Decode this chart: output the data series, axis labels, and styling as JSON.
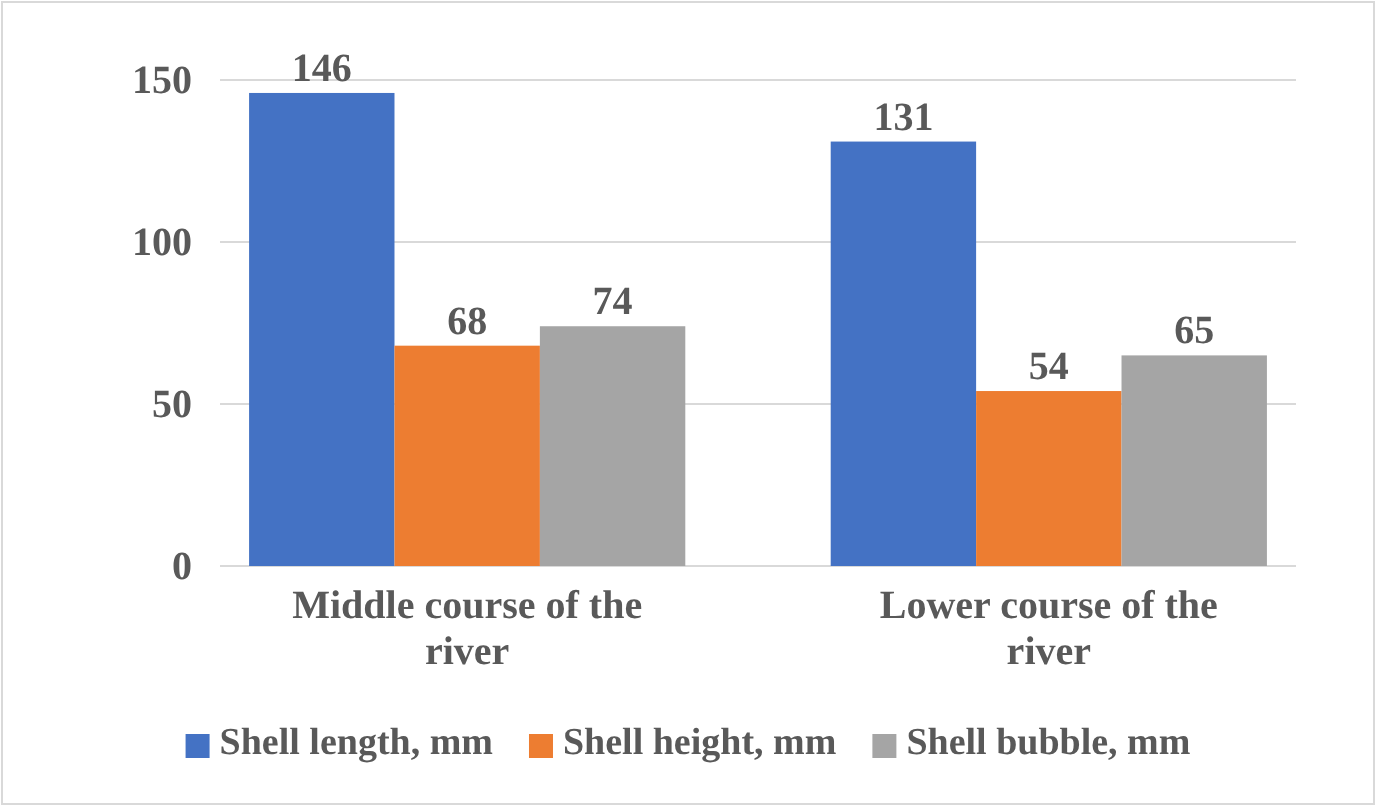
{
  "chart_data": {
    "type": "bar",
    "categories": [
      "Middle course of the river",
      "Lower course of the river"
    ],
    "series": [
      {
        "name": "Shell length, mm",
        "color": "#4472c4",
        "values": [
          146,
          131
        ]
      },
      {
        "name": "Shell height, mm",
        "color": "#ed7d31",
        "values": [
          68,
          54
        ]
      },
      {
        "name": "Shell bubble, mm",
        "color": "#a5a5a5",
        "values": [
          74,
          65
        ]
      }
    ],
    "ylim": [
      0,
      150
    ],
    "yticks": [
      0,
      50,
      100,
      150
    ],
    "grid": "y",
    "legend": "bottom",
    "data_labels": true
  }
}
